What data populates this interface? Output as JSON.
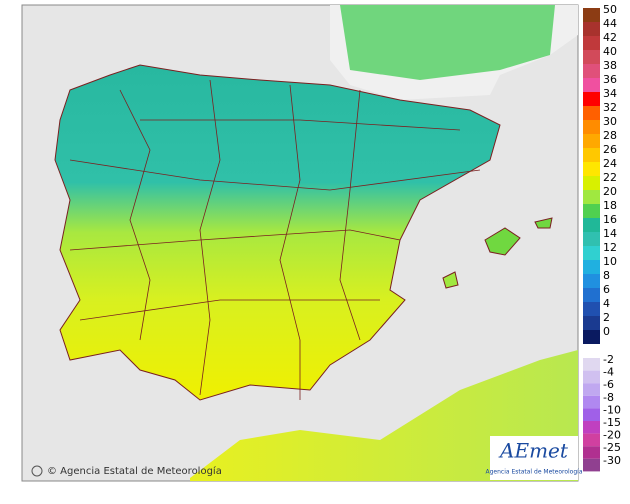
{
  "map": {
    "copyright": "© Agencia Estatal de Meteorología",
    "logo": {
      "name": "AEmet",
      "subtitle": "Agencia Estatal de Meteorología"
    },
    "legend": {
      "warm": [
        {
          "label": "50",
          "color": "#8c3c14"
        },
        {
          "label": "44",
          "color": "#a8322d"
        },
        {
          "label": "42",
          "color": "#c0393b"
        },
        {
          "label": "40",
          "color": "#d24a5a"
        },
        {
          "label": "38",
          "color": "#e0507a"
        },
        {
          "label": "36",
          "color": "#f050a0"
        },
        {
          "label": "34",
          "color": "#ff0000"
        },
        {
          "label": "32",
          "color": "#ff6000"
        },
        {
          "label": "30",
          "color": "#ff8c00"
        },
        {
          "label": "28",
          "color": "#ffa800"
        },
        {
          "label": "26",
          "color": "#ffc800"
        },
        {
          "label": "24",
          "color": "#ffe600"
        },
        {
          "label": "22",
          "color": "#d8f000"
        },
        {
          "label": "20",
          "color": "#a0e840"
        },
        {
          "label": "18",
          "color": "#50d050"
        },
        {
          "label": "16",
          "color": "#20b898"
        },
        {
          "label": "14",
          "color": "#30c0b0"
        },
        {
          "label": "12",
          "color": "#30d0d0"
        },
        {
          "label": "10",
          "color": "#20b0e0"
        },
        {
          "label": "8",
          "color": "#2090e0"
        },
        {
          "label": "6",
          "color": "#2070d0"
        },
        {
          "label": "4",
          "color": "#2050b0"
        },
        {
          "label": "2",
          "color": "#1a3a90"
        },
        {
          "label": "0",
          "color": "#0a1a60"
        }
      ],
      "cold": [
        {
          "label": "-2",
          "color": "#e0d8f0"
        },
        {
          "label": "-4",
          "color": "#d0c0f0"
        },
        {
          "label": "-6",
          "color": "#c0a8f0"
        },
        {
          "label": "-8",
          "color": "#b088f0"
        },
        {
          "label": "-10",
          "color": "#a060e8"
        },
        {
          "label": "-15",
          "color": "#c040c0"
        },
        {
          "label": "-20",
          "color": "#d040a0"
        },
        {
          "label": "-25",
          "color": "#b03090"
        },
        {
          "label": "-30",
          "color": "#904090"
        }
      ]
    }
  }
}
